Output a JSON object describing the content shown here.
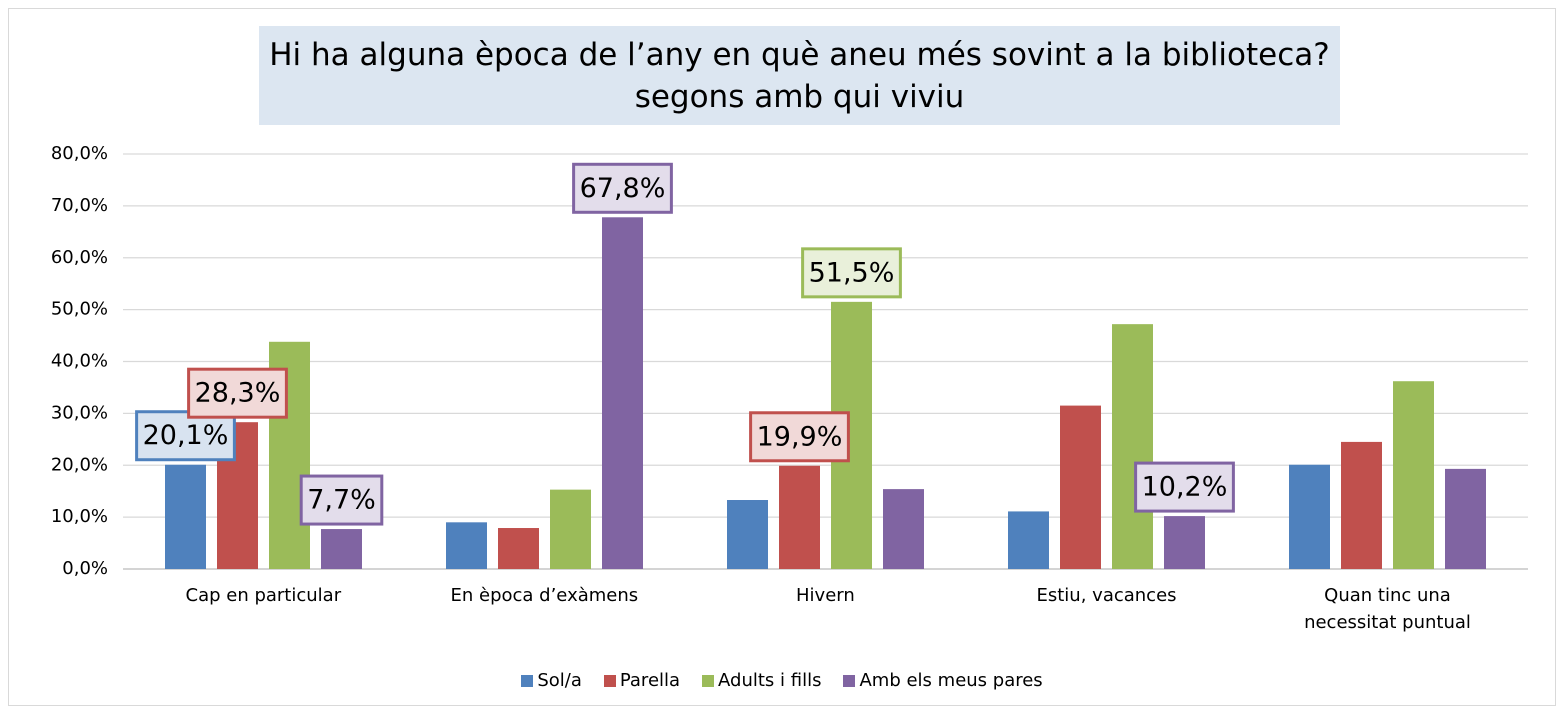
{
  "chart_data": {
    "type": "bar",
    "title": "Hi ha alguna època de l’any en què aneu més sovint a la biblioteca? segons amb qui viviu",
    "categories": [
      "Cap en particular",
      "En època d’exàmens",
      "Hivern",
      "Estiu, vacances",
      "Quan tinc una necessitat puntual"
    ],
    "series": [
      {
        "name": "Sol/a",
        "color": "#4f81bd",
        "values": [
          20.1,
          9.0,
          13.3,
          11.1,
          20.1
        ],
        "value_labels": [
          "20,1%",
          null,
          null,
          null,
          null
        ]
      },
      {
        "name": "Parella",
        "color": "#c0504d",
        "values": [
          28.3,
          7.9,
          19.9,
          31.5,
          24.5
        ],
        "value_labels": [
          "28,3%",
          null,
          "19,9%",
          null,
          null
        ]
      },
      {
        "name": "Adults i fills",
        "color": "#9bbb59",
        "values": [
          43.8,
          15.3,
          51.5,
          47.2,
          36.2
        ],
        "value_labels": [
          null,
          null,
          "51,5%",
          null,
          null
        ]
      },
      {
        "name": "Amb els meus pares",
        "color": "#8064a2",
        "values": [
          7.7,
          67.8,
          15.4,
          10.2,
          19.3
        ],
        "value_labels": [
          "7,7%",
          "67,8%",
          null,
          "10,2%",
          null
        ]
      }
    ],
    "ylim": [
      0,
      80
    ],
    "yticks": [
      {
        "value": 0,
        "label": "0,0%"
      },
      {
        "value": 10,
        "label": "10,0%"
      },
      {
        "value": 20,
        "label": "20,0%"
      },
      {
        "value": 30,
        "label": "30,0%"
      },
      {
        "value": 40,
        "label": "40,0%"
      },
      {
        "value": 50,
        "label": "50,0%"
      },
      {
        "value": 60,
        "label": "60,0%"
      },
      {
        "value": 70,
        "label": "70,0%"
      },
      {
        "value": 80,
        "label": "80,0%"
      }
    ],
    "grid": true,
    "legend": "bottom"
  }
}
